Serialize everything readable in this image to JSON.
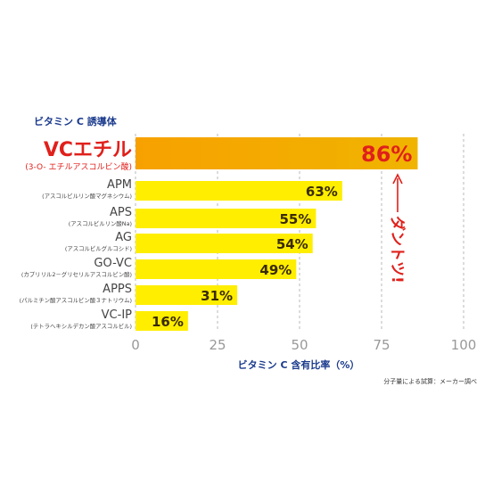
{
  "chart_data": {
    "type": "bar",
    "orientation": "horizontal",
    "title": "ビタミン C 誘導体",
    "xlabel": "ビタミン C 含有比率（%）",
    "xlim": [
      0,
      100
    ],
    "xticks": [
      0,
      25,
      50,
      75,
      100
    ],
    "grid": "vertical dashed",
    "categories": [
      {
        "name": "VCエチル",
        "sub": "(3-O- エチルアスコルビン酸)",
        "value": 86,
        "label": "86%",
        "highlight": true
      },
      {
        "name": "APM",
        "sub": "(アスコルビルリン酸マグネシウム)",
        "value": 63,
        "label": "63%"
      },
      {
        "name": "APS",
        "sub": "(アスコルビルリン酸Na)",
        "value": 55,
        "label": "55%"
      },
      {
        "name": "AG",
        "sub": "(アスコルビルグルコシド)",
        "value": 54,
        "label": "54%"
      },
      {
        "name": "GO-VC",
        "sub": "(カプリリル2－グリセリルアスコルビン酸)",
        "value": 49,
        "label": "49%"
      },
      {
        "name": "APPS",
        "sub": "(パルミチン酸アスコルビン酸３ナトリウム)",
        "value": 31,
        "label": "31%"
      },
      {
        "name": "VC-IP",
        "sub": "(テトラヘキシルデカン酸アスコルビル)",
        "value": 16,
        "label": "16%"
      }
    ],
    "annotation": "ダントツ!",
    "footnote": "分子量による試算：メーカー調べ",
    "colors": {
      "bar": "#ffee00",
      "highlight_bar_start": "#f7a100",
      "highlight_bar_end": "#f0b400",
      "highlight_text": "#e0201b",
      "value_label": "#3a2a00",
      "title": "#1a3a8c",
      "tick": "#999999",
      "grid": "#b8b8b8"
    }
  }
}
